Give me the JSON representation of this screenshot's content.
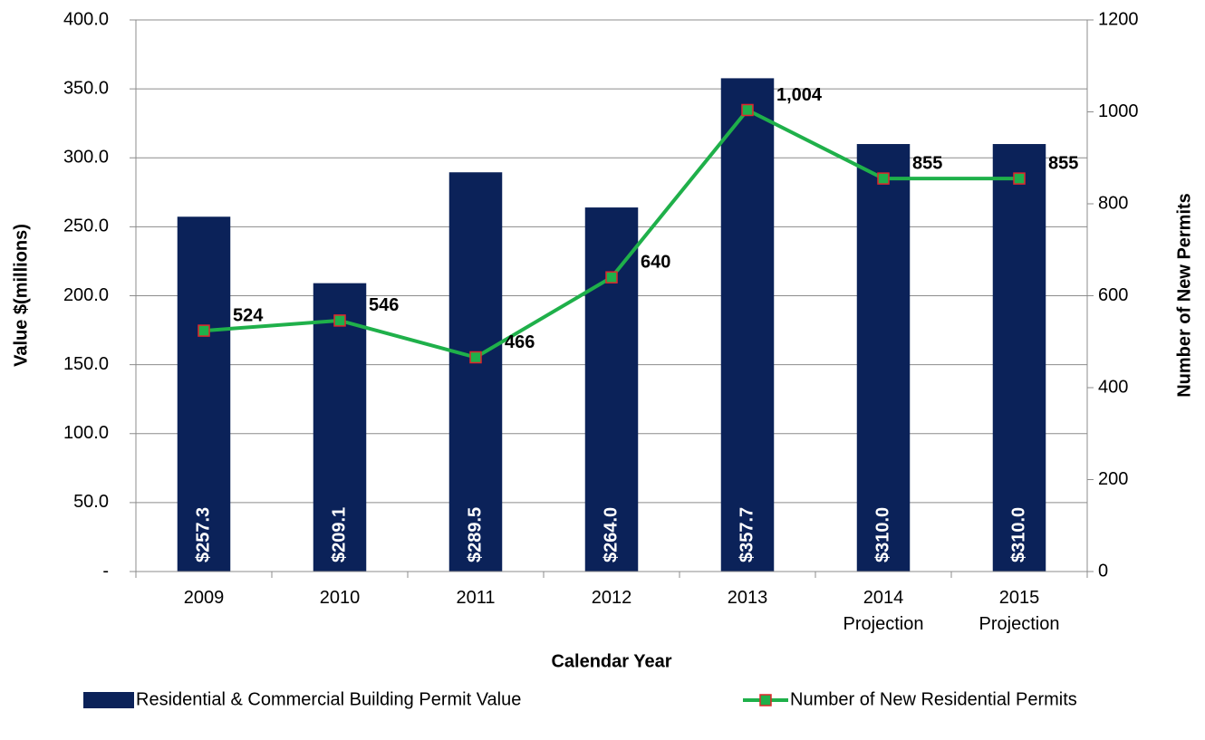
{
  "chart_data": {
    "type": "bar_line",
    "x_axis_label": "Calendar Year",
    "y_axis_label": "Value $(millions)",
    "y2_axis_label": "Number of New Permits",
    "categories": [
      "2009",
      "2010",
      "2011",
      "2012",
      "2013",
      "2014 Projection",
      "2015 Projection"
    ],
    "series": [
      {
        "name": "Residential & Commercial Building Permit Value",
        "type": "bar",
        "color": "#0b2259",
        "values": [
          257.3,
          209.1,
          289.5,
          264.0,
          357.7,
          310.0,
          310.0
        ],
        "value_labels": [
          "$257.3",
          "$209.1",
          "$289.5",
          "$264.0",
          "$357.7",
          "$310.0",
          "$310.0"
        ]
      },
      {
        "name": "Number of New Residential Permits",
        "type": "line",
        "axis": "y2",
        "color": "#1fb04a",
        "marker_color": "#1fb04a",
        "marker_edge_color": "#e0262b",
        "values": [
          524,
          546,
          466,
          640,
          1004,
          855,
          855
        ],
        "value_labels": [
          "524",
          "546",
          "466",
          "640",
          "1,004",
          "855",
          "855"
        ]
      }
    ],
    "ylim": [
      0,
      400
    ],
    "yticks": [
      {
        "value": 0,
        "label": "-"
      },
      {
        "value": 50,
        "label": "50.0"
      },
      {
        "value": 100,
        "label": "100.0"
      },
      {
        "value": 150,
        "label": "150.0"
      },
      {
        "value": 200,
        "label": "200.0"
      },
      {
        "value": 250,
        "label": "250.0"
      },
      {
        "value": 300,
        "label": "300.0"
      },
      {
        "value": 350,
        "label": "350.0"
      },
      {
        "value": 400,
        "label": "400.0"
      }
    ],
    "y2lim": [
      0,
      1200
    ],
    "y2ticks": [
      0,
      200,
      400,
      600,
      800,
      1000,
      1200
    ],
    "grid": true,
    "legend": "bottom"
  }
}
